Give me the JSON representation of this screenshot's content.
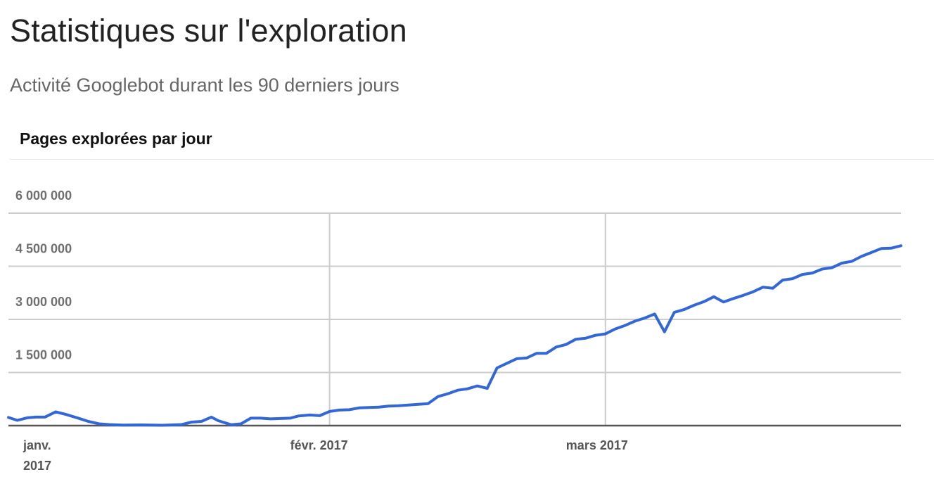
{
  "header": {
    "title": "Statistiques sur l'exploration",
    "subtitle": "Activité Googlebot durant les 90 derniers jours",
    "section_title": "Pages explorées par jour"
  },
  "colors": {
    "line": "#3367d6",
    "grid": "#cccccc",
    "axis": "#555555"
  },
  "chart_data": {
    "type": "line",
    "title": "Pages explorées par jour",
    "xlabel": "",
    "ylabel": "",
    "grid": true,
    "ylim": [
      0,
      6000000
    ],
    "y_ticks": [
      1500000,
      3000000,
      4500000,
      6000000
    ],
    "y_tick_labels": [
      "1 500 000",
      "3 000 000",
      "4 500 000",
      "6 000 000"
    ],
    "x_ticks": [
      {
        "day": 0,
        "label": [
          "janv.",
          "2017"
        ]
      },
      {
        "day": 31,
        "label": [
          "févr. 2017"
        ]
      },
      {
        "day": 59,
        "label": [
          "mars 2017"
        ]
      }
    ],
    "x_range": [
      -1.6,
      89
    ],
    "series": [
      {
        "x": [
          -1.6,
          -0.7,
          0.3,
          1.2,
          2.1,
          3.2,
          4.2,
          5.5,
          6.5,
          7.6,
          8.6,
          10,
          12,
          14,
          16,
          17,
          18,
          19,
          19.7,
          21,
          22,
          23,
          24,
          25,
          26,
          27,
          27.8,
          29,
          30,
          31,
          32,
          33,
          34,
          35,
          36,
          37,
          38,
          39,
          40,
          41,
          42,
          43,
          44,
          45,
          46,
          47,
          48,
          49,
          50,
          51,
          52,
          53,
          54,
          55,
          56,
          57,
          58,
          59,
          60,
          61,
          62,
          63,
          64,
          65,
          66,
          67,
          68,
          69,
          70,
          71,
          72,
          73,
          74,
          75,
          76,
          77,
          78,
          79,
          80,
          81,
          82,
          83,
          84,
          85,
          86,
          87,
          88,
          89
        ],
        "y": [
          230000,
          150000,
          220000,
          240000,
          240000,
          390000,
          320000,
          210000,
          120000,
          50000,
          30000,
          15000,
          20000,
          10000,
          30000,
          100000,
          120000,
          240000,
          140000,
          25000,
          50000,
          210000,
          210000,
          190000,
          200000,
          210000,
          270000,
          300000,
          280000,
          400000,
          440000,
          450000,
          500000,
          510000,
          520000,
          550000,
          560000,
          580000,
          600000,
          620000,
          820000,
          900000,
          1000000,
          1040000,
          1120000,
          1050000,
          1630000,
          1760000,
          1890000,
          1910000,
          2040000,
          2040000,
          2220000,
          2290000,
          2440000,
          2470000,
          2550000,
          2590000,
          2730000,
          2830000,
          2950000,
          3040000,
          3150000,
          2650000,
          3200000,
          3280000,
          3400000,
          3500000,
          3640000,
          3490000,
          3590000,
          3680000,
          3780000,
          3910000,
          3880000,
          4110000,
          4150000,
          4270000,
          4310000,
          4420000,
          4460000,
          4590000,
          4640000,
          4780000,
          4890000,
          5000000,
          5010000,
          5080000
        ]
      }
    ]
  }
}
